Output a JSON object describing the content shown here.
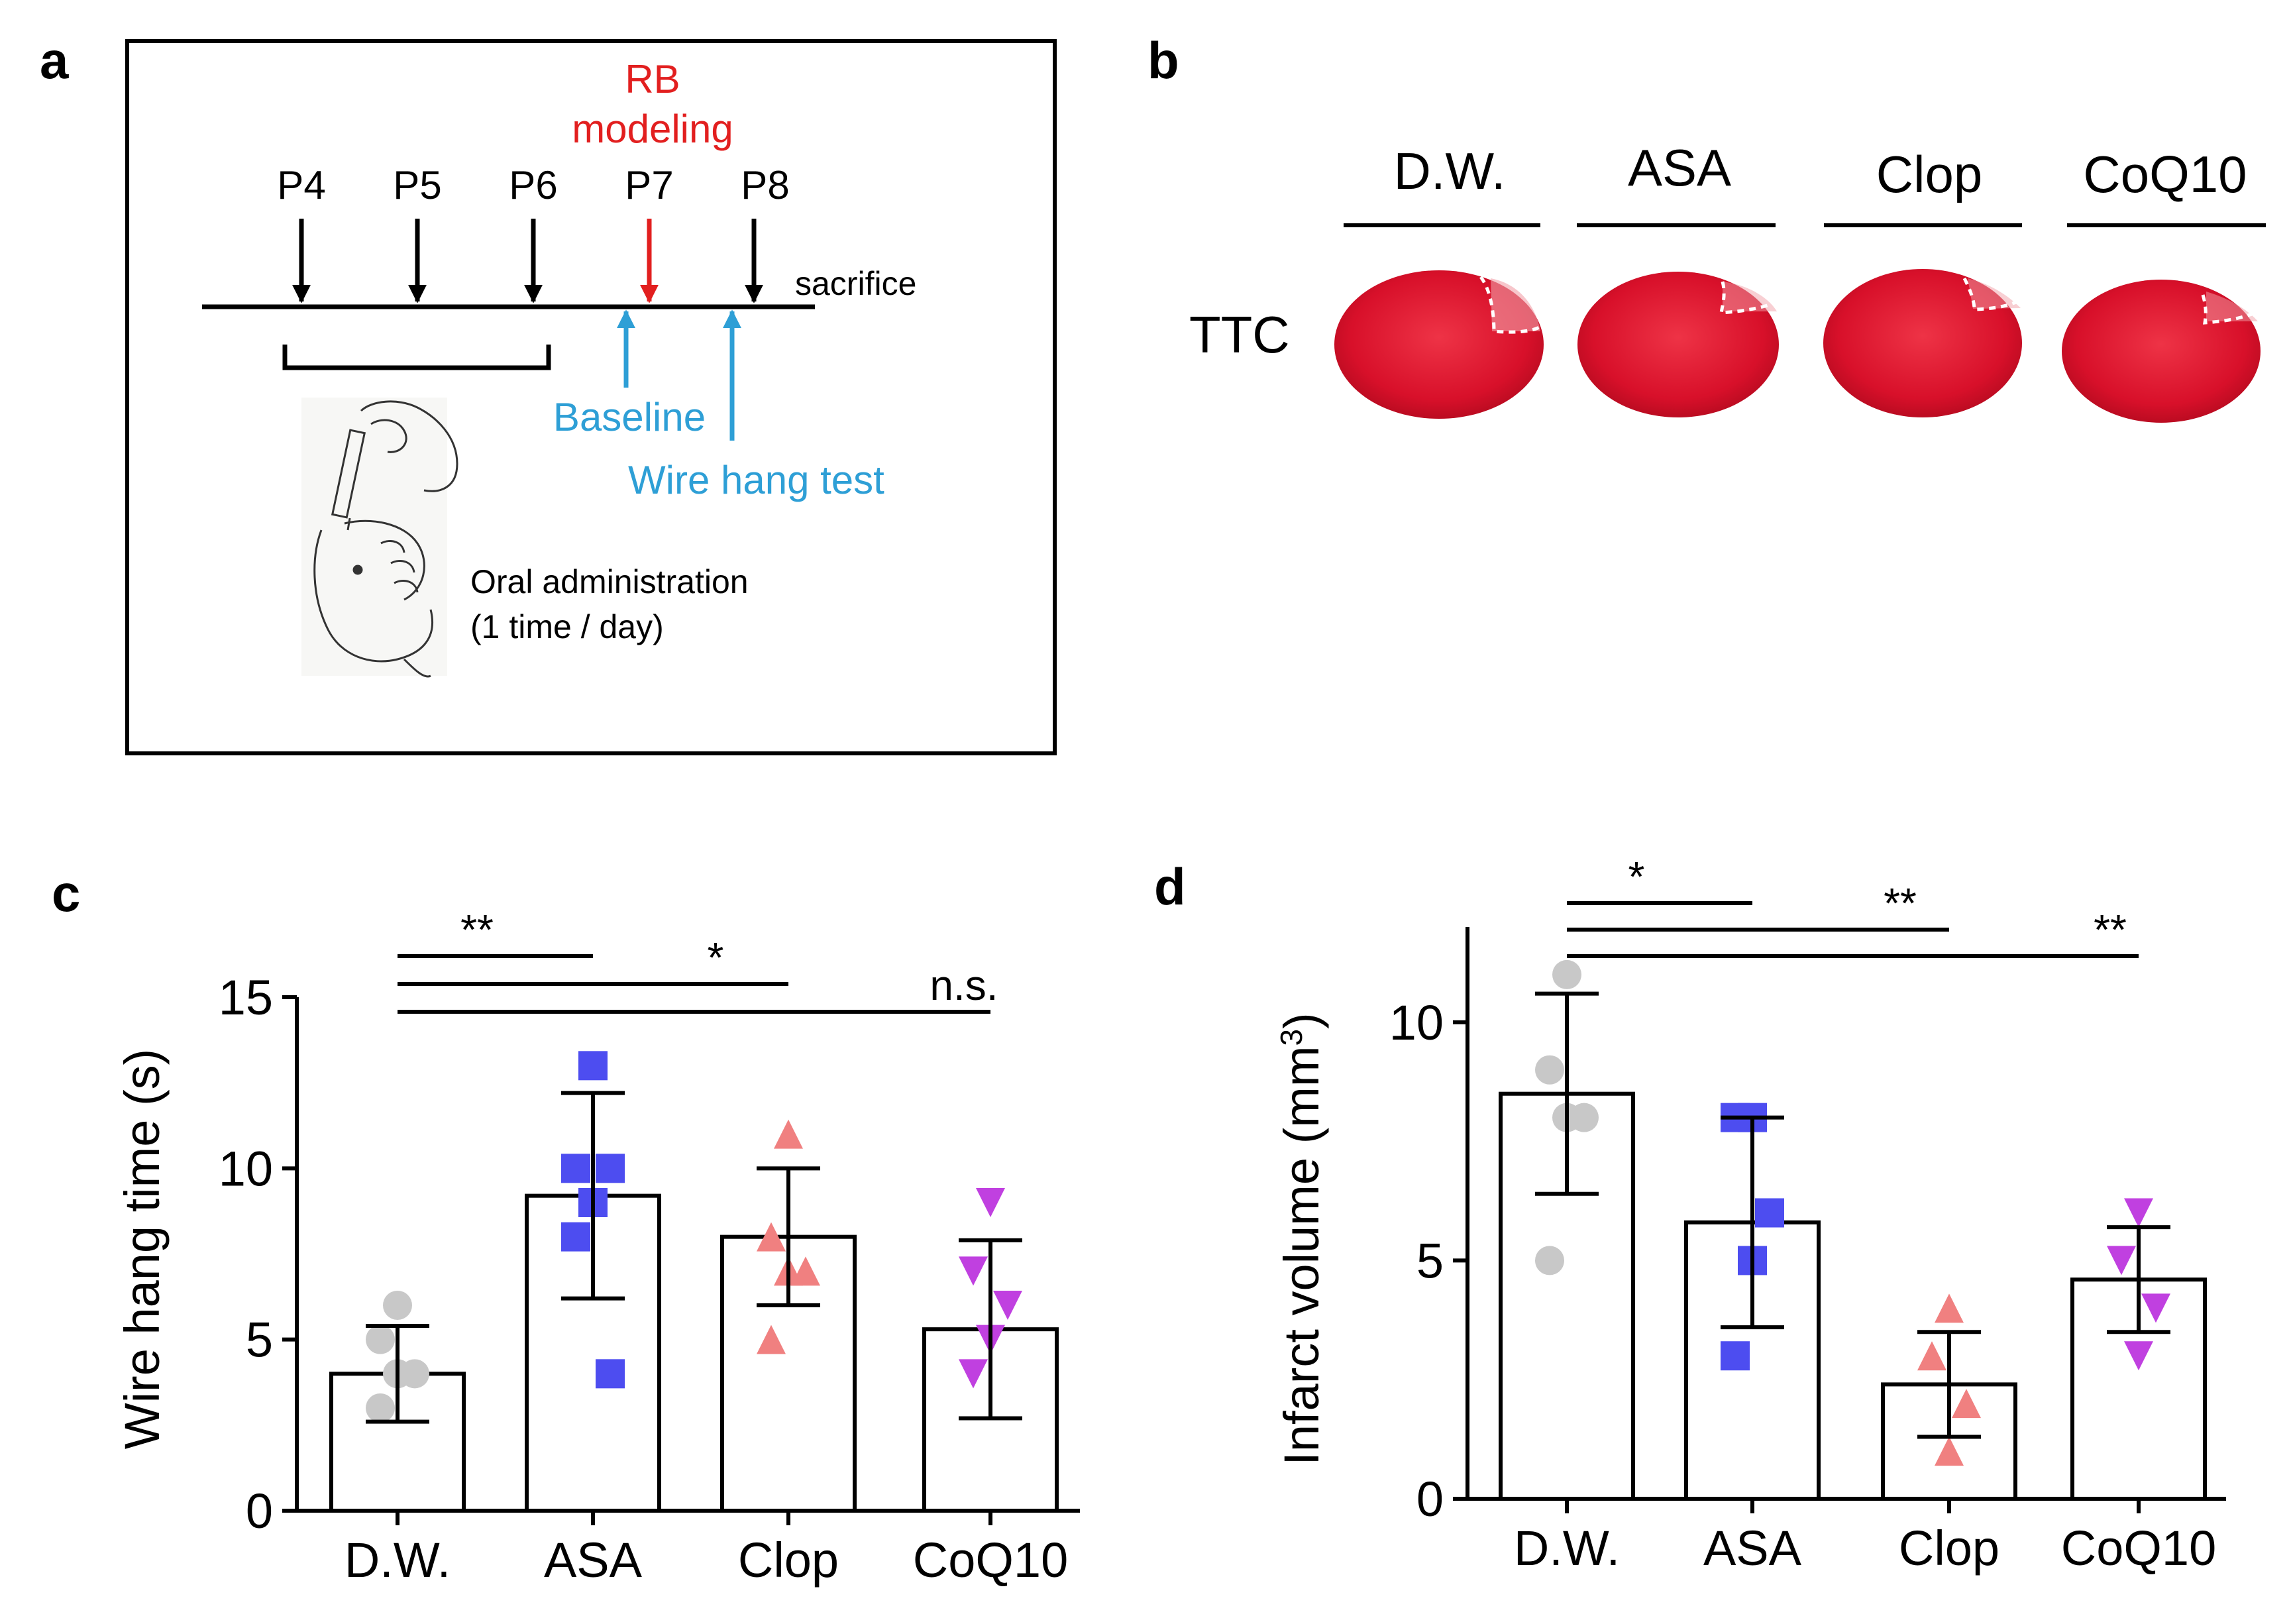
{
  "panels": {
    "a": "a",
    "b": "b",
    "c": "c",
    "d": "d"
  },
  "colors": {
    "dw": "#c8c8c8",
    "asa": "#4d4df0",
    "clop": "#f08080",
    "coq10": "#c040e0",
    "timeline_red": "#e21f1f",
    "timeline_blue": "#2e9fd6",
    "brain_red": "#d8102a"
  },
  "panel_a": {
    "days": [
      "P4",
      "P5",
      "P6",
      "P7",
      "P8"
    ],
    "rb_line1": "RB",
    "rb_line2": "modeling",
    "sacrifice": "sacrifice",
    "baseline": "Baseline",
    "wire_hang_test": "Wire hang test",
    "oral_line1": "Oral administration",
    "oral_line2": "(1 time / day)"
  },
  "panel_b": {
    "row_label": "TTC",
    "groups": [
      "D.W.",
      "ASA",
      "Clop",
      "CoQ10"
    ]
  },
  "chart_data": [
    {
      "panel": "c",
      "type": "bar",
      "categories": [
        "D.W.",
        "ASA",
        "Clop",
        "CoQ10"
      ],
      "values": [
        4.0,
        9.2,
        8.0,
        5.3
      ],
      "error": [
        1.4,
        3.0,
        2.0,
        2.6
      ],
      "points": [
        [
          6,
          5,
          4,
          4,
          3
        ],
        [
          13,
          10,
          10,
          9,
          8,
          4
        ],
        [
          11,
          8,
          7,
          7,
          5
        ],
        [
          9,
          7,
          6,
          5,
          4
        ]
      ],
      "ylabel": "Wire hang time (s)",
      "ylim": [
        0,
        15
      ],
      "yticks": [
        0,
        5,
        10,
        15
      ],
      "significance": [
        {
          "from": "D.W.",
          "to": "ASA",
          "label": "**"
        },
        {
          "from": "D.W.",
          "to": "Clop",
          "label": "*"
        },
        {
          "from": "D.W.",
          "to": "CoQ10",
          "label": "n.s."
        }
      ]
    },
    {
      "panel": "d",
      "type": "bar",
      "categories": [
        "D.W.",
        "ASA",
        "Clop",
        "CoQ10"
      ],
      "values": [
        8.5,
        5.8,
        2.4,
        4.6
      ],
      "error": [
        2.1,
        2.2,
        1.1,
        1.1
      ],
      "points": [
        [
          11,
          9,
          8,
          8,
          5
        ],
        [
          8,
          8,
          6,
          5,
          3
        ],
        [
          4,
          3,
          2,
          1
        ],
        [
          6,
          5,
          4,
          3
        ]
      ],
      "ylabel": "Infarct volume (mm",
      "ylabel_sup": "3",
      "ylabel_close": ")",
      "ylim": [
        0,
        12
      ],
      "yticks": [
        0,
        5,
        10
      ],
      "significance": [
        {
          "from": "D.W.",
          "to": "ASA",
          "label": "*"
        },
        {
          "from": "D.W.",
          "to": "Clop",
          "label": "**"
        },
        {
          "from": "D.W.",
          "to": "CoQ10",
          "label": "**"
        }
      ]
    }
  ]
}
